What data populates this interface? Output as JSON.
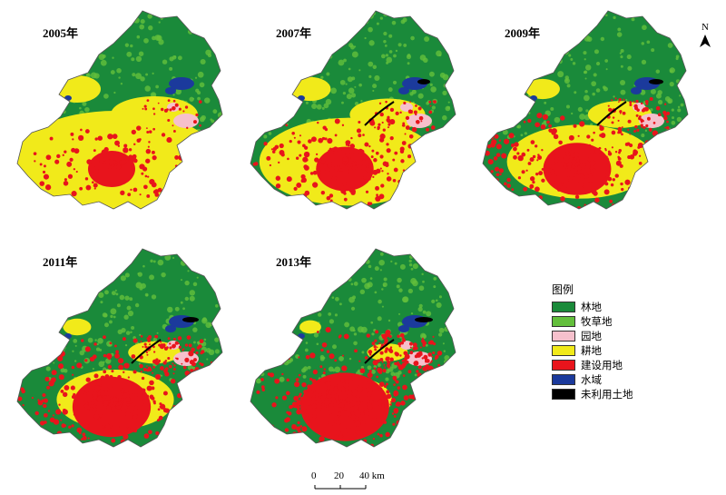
{
  "panels": [
    {
      "year": "2005年"
    },
    {
      "year": "2007年"
    },
    {
      "year": "2009年"
    },
    {
      "year": "2011年"
    },
    {
      "year": "2013年"
    }
  ],
  "legend": {
    "title": "图例",
    "items": [
      {
        "label": "林地",
        "color": "#1a8a3a"
      },
      {
        "label": "牧草地",
        "color": "#63bf3c"
      },
      {
        "label": "园地",
        "color": "#f6c0cc"
      },
      {
        "label": "耕地",
        "color": "#f1ea1a"
      },
      {
        "label": "建设用地",
        "color": "#e8141c"
      },
      {
        "label": "水域",
        "color": "#1b3a9c"
      },
      {
        "label": "未利用土地",
        "color": "#000000"
      }
    ]
  },
  "north": {
    "label": "N"
  },
  "scale": {
    "ticks": [
      "0",
      "20",
      "40 km"
    ]
  }
}
